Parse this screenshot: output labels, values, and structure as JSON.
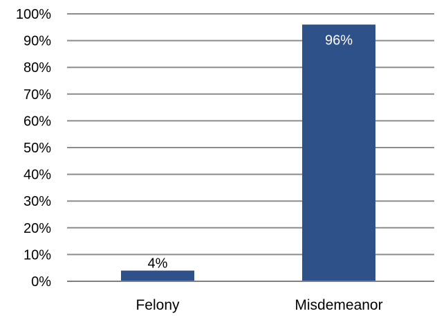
{
  "chart_data": {
    "type": "bar",
    "title": "",
    "xlabel": "",
    "ylabel": "",
    "categories": [
      "Felony",
      "Misdemeanor"
    ],
    "values": [
      4,
      96
    ],
    "data_labels": [
      "4%",
      "96%"
    ],
    "ylim": [
      0,
      100
    ],
    "yticks": [
      0,
      10,
      20,
      30,
      40,
      50,
      60,
      70,
      80,
      90,
      100
    ],
    "ytick_labels": [
      "0%",
      "10%",
      "20%",
      "30%",
      "40%",
      "50%",
      "60%",
      "70%",
      "80%",
      "90%",
      "100%"
    ],
    "grid": true,
    "legend": "none",
    "colors": {
      "bar": "#2f5189",
      "grid": "#8c8c8c",
      "axis": "#808080",
      "text": "#000000",
      "label_inside": "#ffffff"
    }
  }
}
